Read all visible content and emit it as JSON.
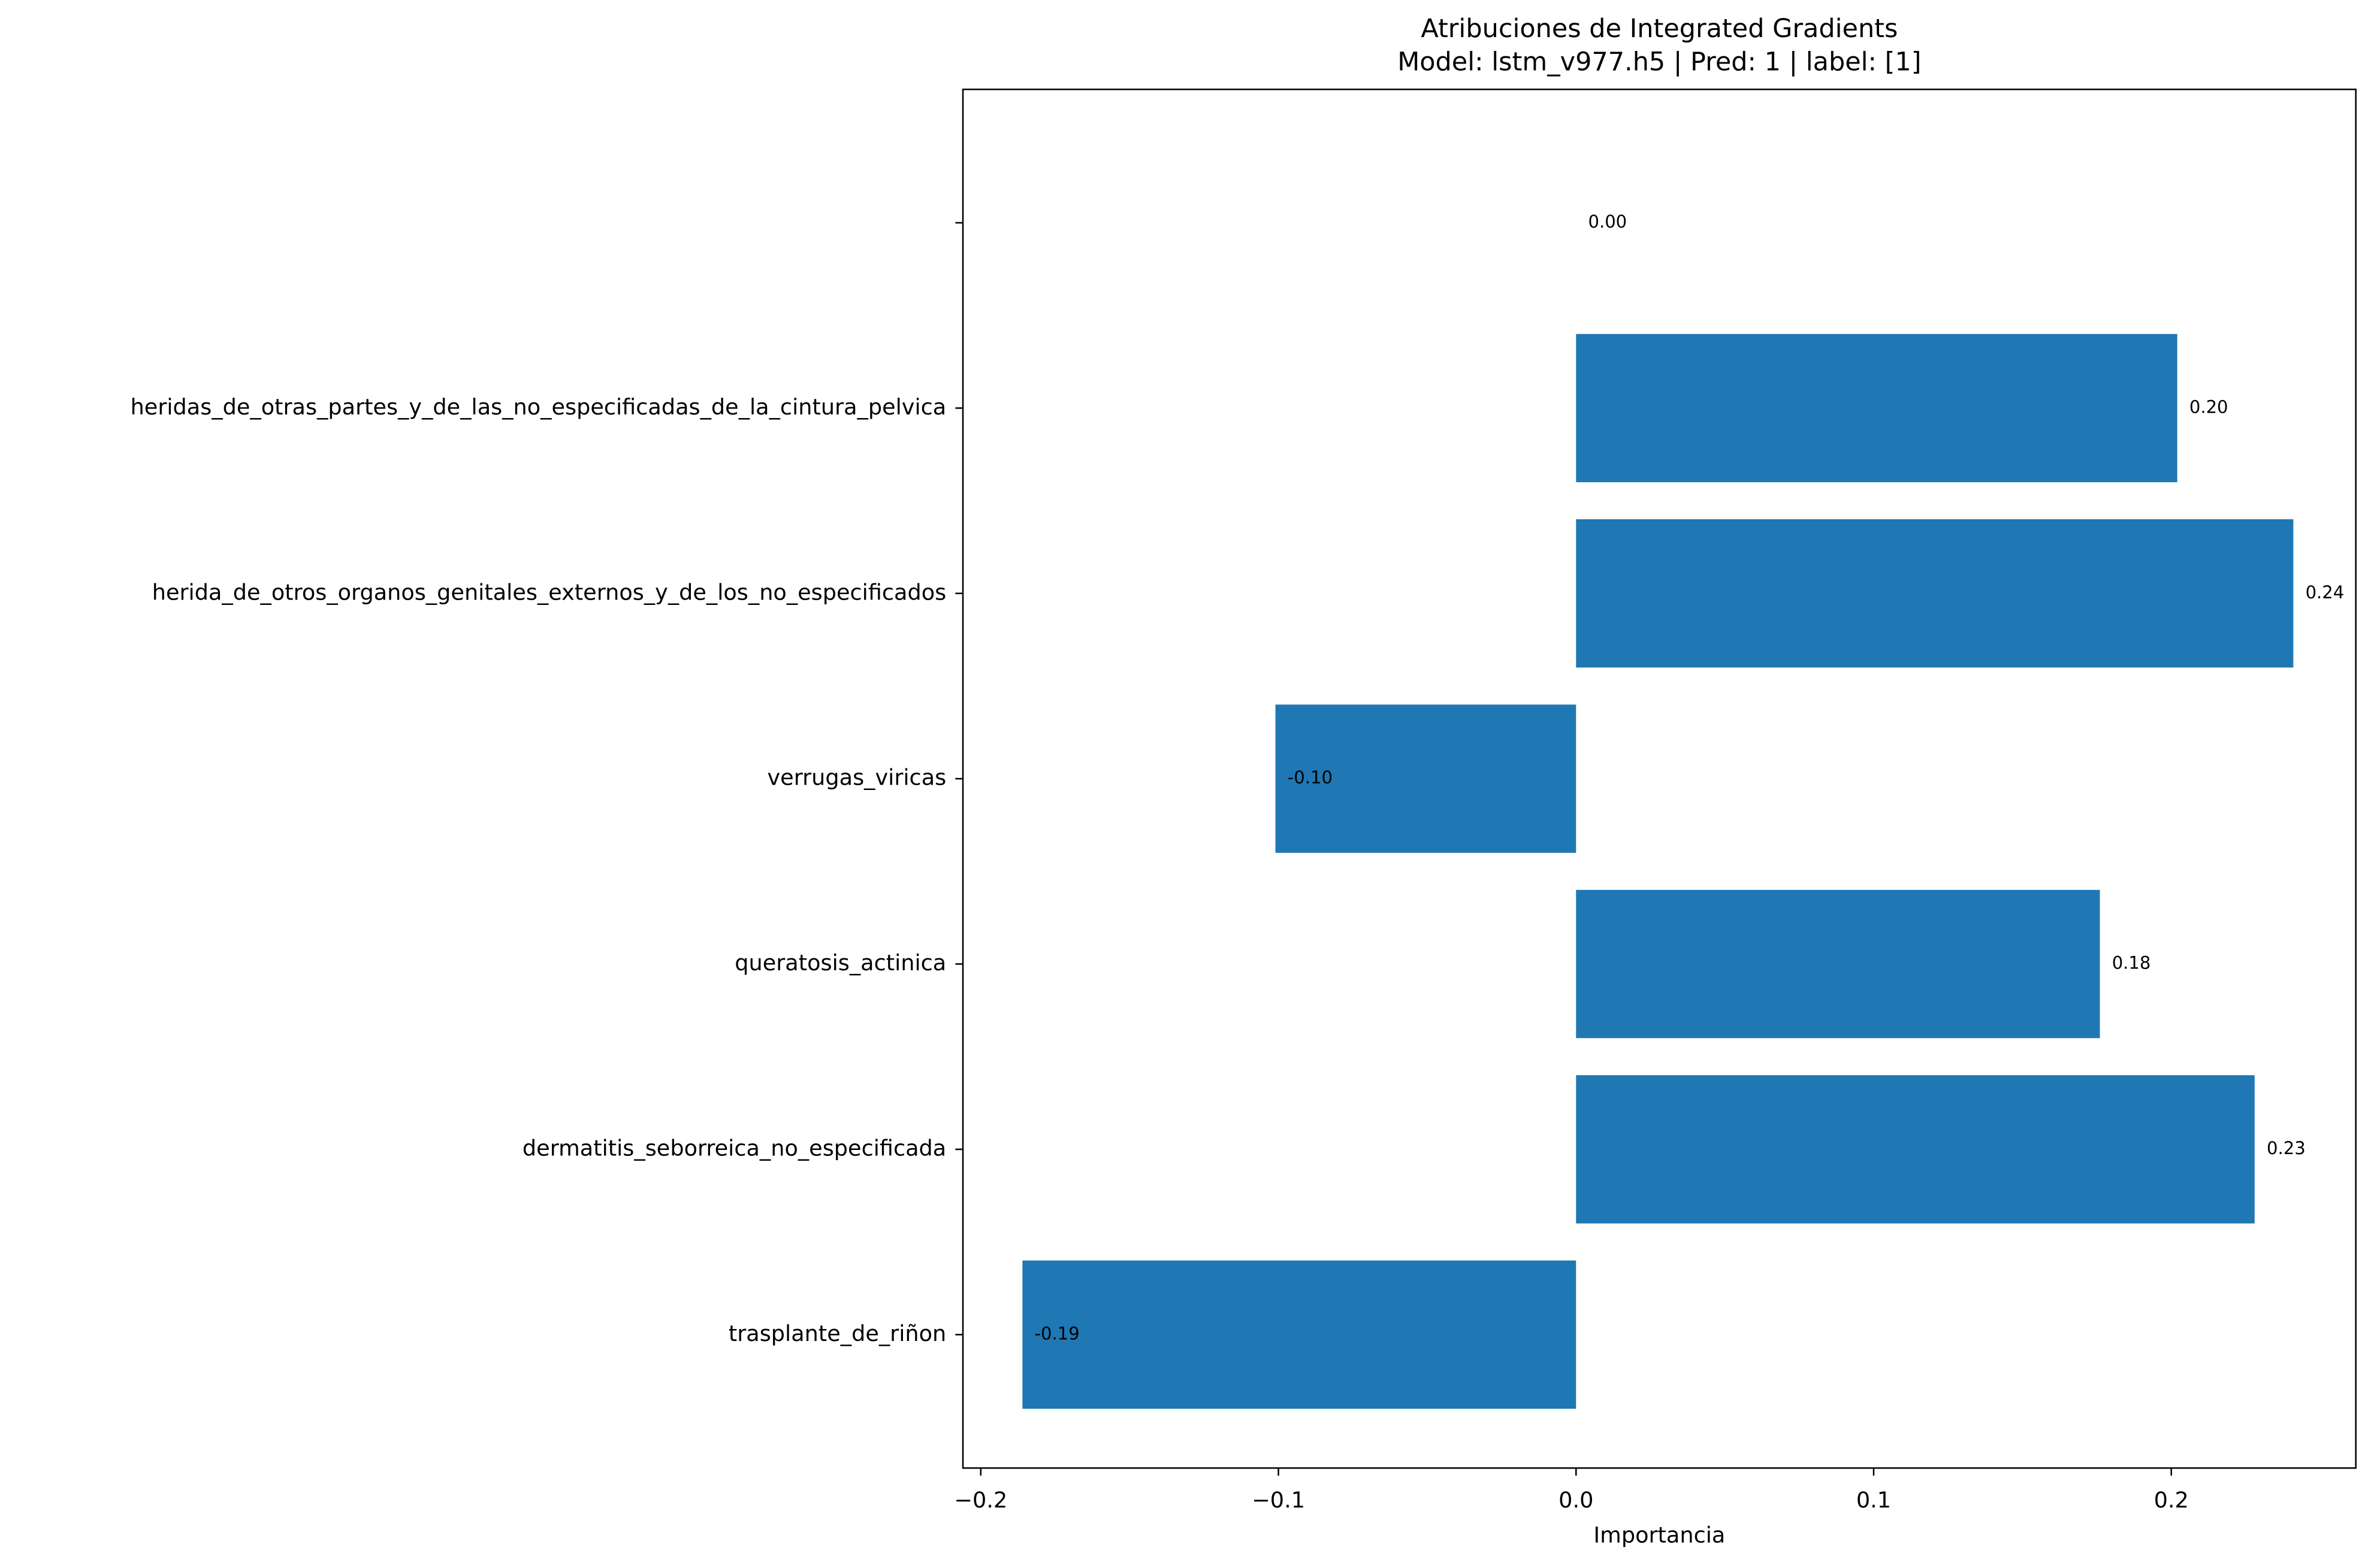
{
  "chart_data": {
    "type": "barh",
    "title": "Atribuciones de Integrated Gradients",
    "subtitle": "Model: lstm_v977.h5 | Pred: 1 | label: [1]",
    "xlabel": "Importancia",
    "categories": [
      "trasplante_de_riñon",
      "dermatitis_seborreica_no_especificada",
      "queratosis_actinica",
      "verrugas_viricas",
      "herida_de_otros_organos_genitales_externos_y_de_los_no_especificados",
      "heridas_de_otras_partes_y_de_las_no_especificadas_de_la_cintura_pelvica",
      null
    ],
    "values": [
      -0.186,
      0.228,
      0.176,
      -0.101,
      0.241,
      0.202,
      0.0
    ],
    "value_labels": [
      "-0.19",
      "0.23",
      "0.18",
      "-0.10",
      "0.24",
      "0.20",
      "0.00"
    ],
    "color": "#1f77b4",
    "xlim": [
      -0.206,
      0.262
    ],
    "xticks": [
      {
        "value": -0.2,
        "label": "−0.2"
      },
      {
        "value": -0.1,
        "label": "−0.1"
      },
      {
        "value": 0,
        "label": "0.0"
      },
      0.1,
      0.2
    ]
  }
}
